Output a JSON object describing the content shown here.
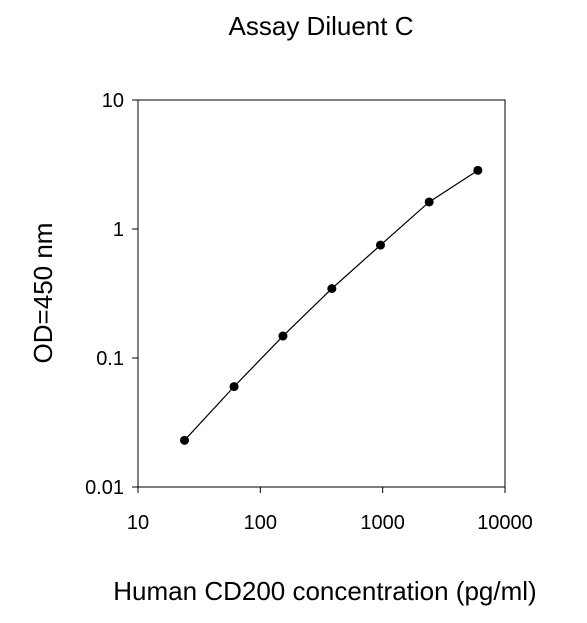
{
  "chart_data": {
    "type": "scatter",
    "title": "Assay Diluent C",
    "xlabel": "Human CD200 concentration (pg/ml)",
    "ylabel": "OD=450 nm",
    "xscale": "log",
    "yscale": "log",
    "xlim": [
      10,
      10000
    ],
    "ylim": [
      0.01,
      10
    ],
    "xticks": [
      10,
      100,
      1000,
      10000
    ],
    "xtick_labels": [
      "10",
      "100",
      "1000",
      "10000"
    ],
    "yticks": [
      0.01,
      0.1,
      1,
      10
    ],
    "ytick_labels": [
      "0.01",
      "0.1",
      "1",
      "10"
    ],
    "grid": false,
    "legend": "none",
    "line_connected": true,
    "marker_color": "#000000",
    "line_color": "#000000",
    "series": [
      {
        "x": [
          24,
          61,
          153,
          384,
          960,
          2400,
          6000
        ],
        "y": [
          0.023,
          0.06,
          0.148,
          0.345,
          0.75,
          1.62,
          2.85
        ]
      }
    ]
  }
}
